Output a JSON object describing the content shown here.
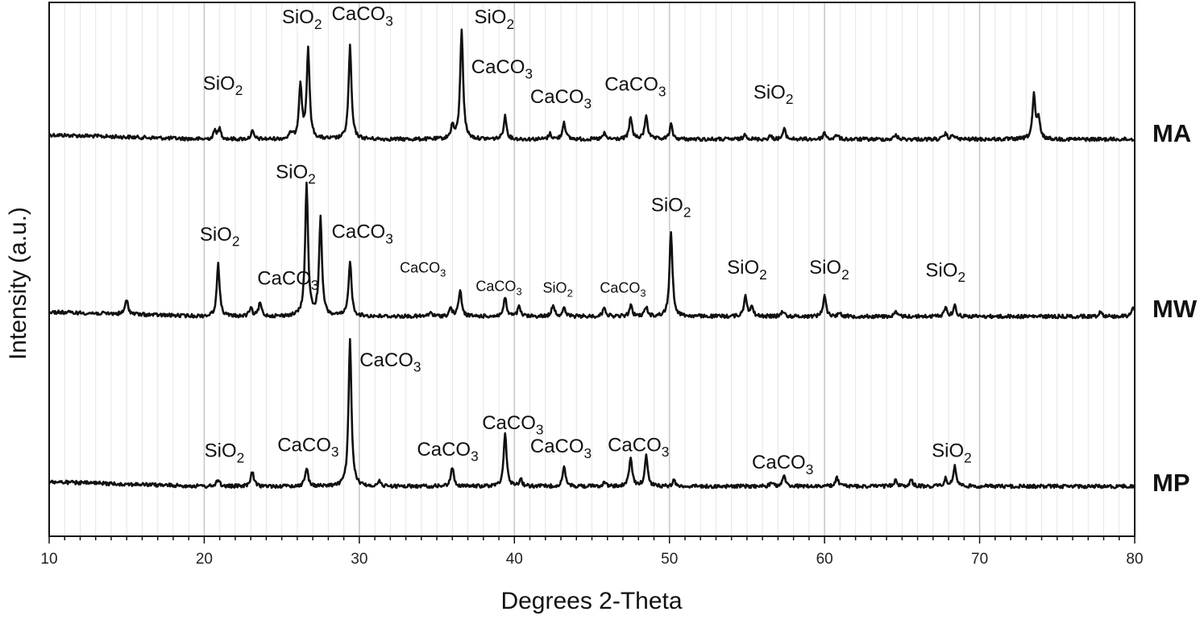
{
  "chart_data": {
    "type": "line",
    "xlabel": "Degrees 2-Theta",
    "ylabel": "Intensity (a.u.)",
    "xlim": [
      10,
      80
    ],
    "xticks": [
      10,
      20,
      30,
      40,
      50,
      60,
      70,
      80
    ],
    "grid": "vertical, every 1 degree (major every 10)",
    "series": [
      {
        "name": "MA",
        "baseline": 0.0,
        "peaks": [
          [
            20.7,
            0.08
          ],
          [
            21.0,
            0.09
          ],
          [
            23.1,
            0.07
          ],
          [
            25.6,
            0.05
          ],
          [
            26.2,
            0.5
          ],
          [
            26.7,
            0.8
          ],
          [
            29.4,
            0.84
          ],
          [
            36.0,
            0.12
          ],
          [
            36.6,
            1.0
          ],
          [
            39.4,
            0.21
          ],
          [
            42.3,
            0.05
          ],
          [
            43.2,
            0.16
          ],
          [
            45.8,
            0.05
          ],
          [
            47.5,
            0.2
          ],
          [
            48.5,
            0.22
          ],
          [
            50.1,
            0.13
          ],
          [
            54.9,
            0.05
          ],
          [
            56.5,
            0.03
          ],
          [
            57.4,
            0.09
          ],
          [
            60.0,
            0.06
          ],
          [
            60.8,
            0.04
          ],
          [
            64.6,
            0.04
          ],
          [
            67.8,
            0.05
          ],
          [
            68.3,
            0.04
          ],
          [
            73.5,
            0.39
          ],
          [
            73.8,
            0.18
          ]
        ],
        "labels": [
          {
            "text": "SiO",
            "sub": "2",
            "x": 21.2,
            "y": 0.45
          },
          {
            "text": "SiO",
            "sub": "2",
            "x": 26.3,
            "y": 1.05
          },
          {
            "text": "CaCO",
            "sub": "3",
            "x": 30.2,
            "y": 1.08
          },
          {
            "text": "SiO",
            "sub": "2",
            "x": 38.7,
            "y": 1.05
          },
          {
            "text": "CaCO",
            "sub": "3",
            "x": 39.2,
            "y": 0.6
          },
          {
            "text": "CaCO",
            "sub": "3",
            "x": 43.0,
            "y": 0.33
          },
          {
            "text": "CaCO",
            "sub": "3",
            "x": 47.8,
            "y": 0.44
          },
          {
            "text": "SiO",
            "sub": "2",
            "x": 56.7,
            "y": 0.37
          }
        ]
      },
      {
        "name": "MW",
        "baseline": 0.0,
        "peaks": [
          [
            15.0,
            0.11
          ],
          [
            20.9,
            0.39
          ],
          [
            23.0,
            0.06
          ],
          [
            23.6,
            0.1
          ],
          [
            26.6,
            1.0
          ],
          [
            27.5,
            0.73
          ],
          [
            29.4,
            0.42
          ],
          [
            34.6,
            0.03
          ],
          [
            35.9,
            0.06
          ],
          [
            36.5,
            0.2
          ],
          [
            39.4,
            0.14
          ],
          [
            40.3,
            0.07
          ],
          [
            42.5,
            0.09
          ],
          [
            43.2,
            0.06
          ],
          [
            45.8,
            0.07
          ],
          [
            47.5,
            0.08
          ],
          [
            48.5,
            0.07
          ],
          [
            50.1,
            0.64
          ],
          [
            54.9,
            0.16
          ],
          [
            55.3,
            0.07
          ],
          [
            57.3,
            0.04
          ],
          [
            60.0,
            0.16
          ],
          [
            61.0,
            0.03
          ],
          [
            64.6,
            0.03
          ],
          [
            67.8,
            0.07
          ],
          [
            68.4,
            0.08
          ],
          [
            77.8,
            0.04
          ],
          [
            79.9,
            0.08
          ]
        ],
        "labels": [
          {
            "text": "SiO",
            "sub": "2",
            "x": 21.0,
            "y": 0.57
          },
          {
            "text": "CaCO",
            "sub": "3",
            "x": 25.4,
            "y": 0.24
          },
          {
            "text": "SiO",
            "sub": "2",
            "x": 25.9,
            "y": 1.04
          },
          {
            "text": "CaCO",
            "sub": "3",
            "x": 30.2,
            "y": 0.59
          },
          {
            "text": "CaCO",
            "sub": "3",
            "x": 34.1,
            "y": 0.33,
            "small": true
          },
          {
            "text": "CaCO",
            "sub": "3",
            "x": 39.0,
            "y": 0.19,
            "small": true
          },
          {
            "text": "SiO",
            "sub": "2",
            "x": 42.8,
            "y": 0.18,
            "small": true
          },
          {
            "text": "CaCO",
            "sub": "3",
            "x": 47.0,
            "y": 0.18,
            "small": true
          },
          {
            "text": "SiO",
            "sub": "2",
            "x": 50.1,
            "y": 0.79
          },
          {
            "text": "SiO",
            "sub": "2",
            "x": 55.0,
            "y": 0.32
          },
          {
            "text": "SiO",
            "sub": "2",
            "x": 60.3,
            "y": 0.32
          },
          {
            "text": "SiO",
            "sub": "2",
            "x": 67.8,
            "y": 0.3
          }
        ]
      },
      {
        "name": "MP",
        "baseline": 0.0,
        "peaks": [
          [
            20.9,
            0.05
          ],
          [
            23.1,
            0.1
          ],
          [
            26.6,
            0.13
          ],
          [
            29.4,
            1.0
          ],
          [
            31.3,
            0.03
          ],
          [
            36.0,
            0.13
          ],
          [
            39.4,
            0.37
          ],
          [
            40.4,
            0.05
          ],
          [
            43.2,
            0.13
          ],
          [
            45.8,
            0.03
          ],
          [
            47.5,
            0.2
          ],
          [
            48.5,
            0.21
          ],
          [
            50.3,
            0.04
          ],
          [
            56.6,
            0.03
          ],
          [
            57.4,
            0.07
          ],
          [
            60.8,
            0.06
          ],
          [
            64.6,
            0.05
          ],
          [
            65.6,
            0.04
          ],
          [
            67.8,
            0.05
          ],
          [
            68.4,
            0.14
          ]
        ],
        "labels": [
          {
            "text": "SiO",
            "sub": "2",
            "x": 21.3,
            "y": 0.2
          },
          {
            "text": "CaCO",
            "sub": "3",
            "x": 26.7,
            "y": 0.24
          },
          {
            "text": "CaCO",
            "sub": "3",
            "x": 32.0,
            "y": 0.82
          },
          {
            "text": "CaCO",
            "sub": "3",
            "x": 35.7,
            "y": 0.21
          },
          {
            "text": "CaCO",
            "sub": "3",
            "x": 39.9,
            "y": 0.39
          },
          {
            "text": "CaCO",
            "sub": "3",
            "x": 43.0,
            "y": 0.23
          },
          {
            "text": "CaCO",
            "sub": "3",
            "x": 48.0,
            "y": 0.24
          },
          {
            "text": "CaCO",
            "sub": "3",
            "x": 57.3,
            "y": 0.12
          },
          {
            "text": "SiO",
            "sub": "2",
            "x": 68.2,
            "y": 0.2
          }
        ]
      }
    ]
  }
}
